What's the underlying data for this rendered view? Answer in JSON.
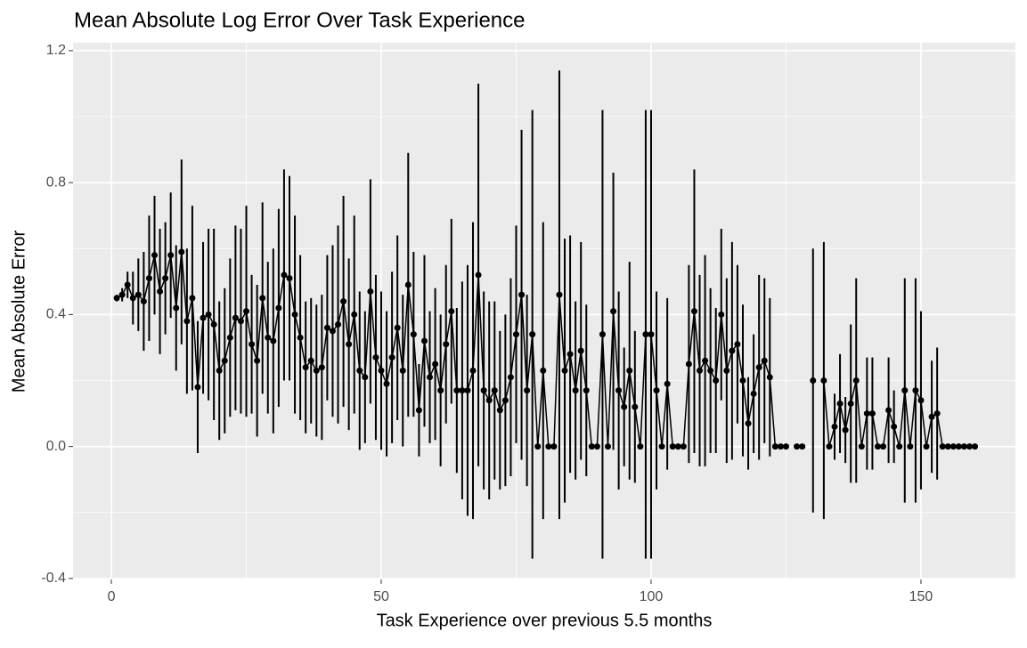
{
  "chart_data": {
    "type": "errorbar-line",
    "title": "Mean Absolute Log Error Over Task Experience",
    "x_label": "Task Experience over previous 5.5 months",
    "y_label": "Mean Absolute Error",
    "x": [
      1,
      2,
      3,
      4,
      5,
      6,
      7,
      8,
      9,
      10,
      11,
      12,
      13,
      14,
      15,
      16,
      17,
      18,
      19,
      20,
      21,
      22,
      23,
      24,
      25,
      26,
      27,
      28,
      29,
      30,
      31,
      32,
      33,
      34,
      35,
      36,
      37,
      38,
      39,
      40,
      41,
      42,
      43,
      44,
      45,
      46,
      47,
      48,
      49,
      50,
      51,
      52,
      53,
      54,
      55,
      56,
      57,
      58,
      59,
      60,
      61,
      62,
      63,
      64,
      65,
      66,
      67,
      68,
      69,
      70,
      71,
      72,
      73,
      74,
      75,
      76,
      77,
      78,
      79,
      80,
      81,
      82,
      83,
      84,
      85,
      86,
      87,
      88,
      89,
      90,
      91,
      92,
      93,
      94,
      95,
      96,
      97,
      98,
      99,
      100,
      101,
      102,
      103,
      104,
      105,
      106,
      107,
      108,
      109,
      110,
      111,
      112,
      113,
      114,
      115,
      116,
      117,
      118,
      119,
      120,
      121,
      122,
      123,
      124,
      125,
      126,
      127,
      128,
      129,
      130,
      131,
      132,
      133,
      134,
      135,
      136,
      137,
      138,
      139,
      140,
      141,
      142,
      143,
      144,
      145,
      146,
      147,
      148,
      149,
      150,
      151,
      152,
      153,
      154,
      155,
      156,
      157,
      158,
      159,
      160
    ],
    "values": [
      0.45,
      0.46,
      0.49,
      0.45,
      0.46,
      0.44,
      0.51,
      0.58,
      0.47,
      0.51,
      0.58,
      0.42,
      0.59,
      0.38,
      0.45,
      0.18,
      0.39,
      0.4,
      0.37,
      0.23,
      0.26,
      0.33,
      0.39,
      0.38,
      0.41,
      0.31,
      0.26,
      0.45,
      0.33,
      0.32,
      0.42,
      0.52,
      0.51,
      0.4,
      0.33,
      0.24,
      0.26,
      0.23,
      0.24,
      0.36,
      0.35,
      0.37,
      0.44,
      0.31,
      0.4,
      0.23,
      0.21,
      0.47,
      0.27,
      0.23,
      0.19,
      0.27,
      0.36,
      0.23,
      0.49,
      0.34,
      0.11,
      0.32,
      0.21,
      0.25,
      0.17,
      0.31,
      0.41,
      0.17,
      0.17,
      0.17,
      0.23,
      0.52,
      0.17,
      0.14,
      0.17,
      0.11,
      0.14,
      0.21,
      0.34,
      0.46,
      0.17,
      0.34,
      0,
      0.23,
      0,
      0,
      0.46,
      0.23,
      0.28,
      0.17,
      0.29,
      0.17,
      0,
      0,
      0.34,
      0,
      0.41,
      0.17,
      0.12,
      0.23,
      0.12,
      0,
      0.34,
      0.34,
      0.17,
      0,
      0.19,
      0,
      0,
      0,
      0.25,
      0.41,
      0.23,
      0.26,
      0.23,
      0.2,
      0.4,
      0.23,
      0.29,
      0.31,
      0.2,
      0.07,
      0.16,
      0.24,
      0.26,
      0.21,
      0,
      0,
      0,
      null,
      0,
      0,
      null,
      0.2,
      null,
      0.2,
      0,
      0.06,
      0.13,
      0.05,
      0.13,
      0.2,
      0,
      0.1,
      0.1,
      0,
      0,
      0.11,
      0.06,
      0,
      0.17,
      0,
      0.17,
      0.14,
      0,
      0.09,
      0.1,
      0,
      0,
      0,
      0,
      0,
      0,
      0
    ],
    "errors": [
      0.01,
      0.02,
      0.04,
      0.08,
      0.11,
      0.15,
      0.19,
      0.18,
      0.19,
      0.17,
      0.19,
      0.19,
      0.28,
      0.22,
      0.28,
      0.2,
      0.23,
      0.26,
      0.29,
      0.21,
      0.22,
      0.24,
      0.28,
      0.28,
      0.32,
      0.21,
      0.23,
      0.29,
      0.23,
      0.28,
      0.3,
      0.32,
      0.31,
      0.3,
      0.25,
      0.2,
      0.19,
      0.2,
      0.22,
      0.22,
      0.26,
      0.3,
      0.32,
      0.26,
      0.3,
      0.24,
      0.2,
      0.34,
      0.25,
      0.24,
      0.22,
      0.26,
      0.28,
      0.23,
      0.4,
      0.25,
      0.14,
      0.26,
      0.2,
      0.23,
      0.23,
      0.24,
      0.28,
      0.25,
      0.33,
      0.38,
      0.45,
      0.58,
      0.3,
      0.3,
      0.27,
      0.24,
      0.26,
      0.3,
      0.33,
      0.5,
      0.29,
      0.68,
      0,
      0.45,
      0,
      0,
      0.68,
      0.4,
      0.36,
      0.27,
      0.33,
      0.26,
      0,
      0,
      0.68,
      0,
      0.42,
      0.3,
      0.18,
      0.33,
      0.23,
      0,
      0.68,
      0.68,
      0.3,
      0,
      0.26,
      0,
      0,
      0,
      0.3,
      0.43,
      0.29,
      0.32,
      0.25,
      0.22,
      0.26,
      0.28,
      0.33,
      0.24,
      0.23,
      0.14,
      0.18,
      0.28,
      0.25,
      0.24,
      0,
      0,
      0,
      null,
      0,
      0,
      null,
      0.4,
      null,
      0.42,
      0,
      0.1,
      0.15,
      0.1,
      0.24,
      0.31,
      0,
      0.17,
      0.17,
      0,
      0,
      0.16,
      0.11,
      0,
      0.34,
      0,
      0.34,
      0.27,
      0,
      0.17,
      0.2,
      0,
      0,
      0,
      0,
      0,
      0,
      0
    ],
    "color": "#000000",
    "xlim": [
      -7.1,
      167.5
    ],
    "ylim": [
      -0.403,
      1.224
    ],
    "xticks": [
      0,
      50,
      100,
      150
    ],
    "yticks": [
      -0.4,
      {
        "value": 0,
        "label": "0.0"
      },
      0.4,
      0.8,
      1.2
    ],
    "x_minor_grid": [
      25,
      75,
      125
    ],
    "y_minor_grid": [
      -0.2,
      0.2,
      0.6,
      1.0
    ],
    "grid": true
  }
}
